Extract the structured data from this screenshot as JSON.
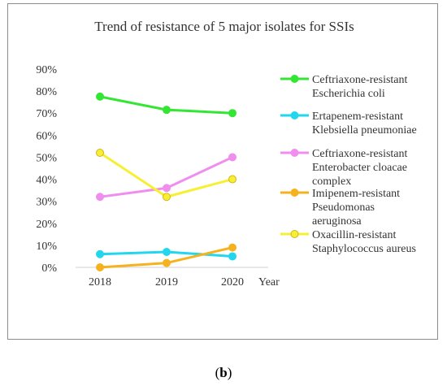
{
  "panel_label": {
    "open": "(",
    "letter": "b",
    "close": ")"
  },
  "chart_data": {
    "type": "line",
    "title": "Trend of resistance of 5 major isolates for SSIs",
    "xlabel": "Year",
    "ylabel": "",
    "categories": [
      "2018",
      "2019",
      "2020"
    ],
    "ylim": [
      0,
      90
    ],
    "yticks": [
      "0%",
      "10%",
      "20%",
      "30%",
      "40%",
      "50%",
      "60%",
      "70%",
      "80%",
      "90%"
    ],
    "grid": false,
    "legend_position": "right",
    "series": [
      {
        "name_lines": [
          "Ceftriaxone-resistant",
          "Escherichia coli"
        ],
        "color": "#33e633",
        "marker_fill": "#33e633",
        "values": [
          77.5,
          71.5,
          70
        ]
      },
      {
        "name_lines": [
          "Ertapenem-resistant",
          "Klebsiella pneumoniae"
        ],
        "color": "#22d6ee",
        "marker_fill": "#22d6ee",
        "values": [
          6,
          7,
          5
        ]
      },
      {
        "name_lines": [
          "Ceftriaxone-resistant",
          "Enterobacter cloacae",
          "complex"
        ],
        "color": "#f08ef0",
        "marker_fill": "#f08ef0",
        "values": [
          32,
          36,
          50
        ]
      },
      {
        "name_lines": [
          "Imipenem-resistant",
          "Pseudomonas",
          "aeruginosa"
        ],
        "color": "#f5b21e",
        "marker_fill": "#f5b21e",
        "values": [
          0,
          2,
          9
        ]
      },
      {
        "name_lines": [
          "Oxacillin-resistant",
          "Staphylococcus aureus"
        ],
        "color": "#f5f032",
        "marker_fill": "#f5f032",
        "marker_stroke": "#d9b21c",
        "values": [
          52,
          32,
          40
        ]
      }
    ]
  }
}
